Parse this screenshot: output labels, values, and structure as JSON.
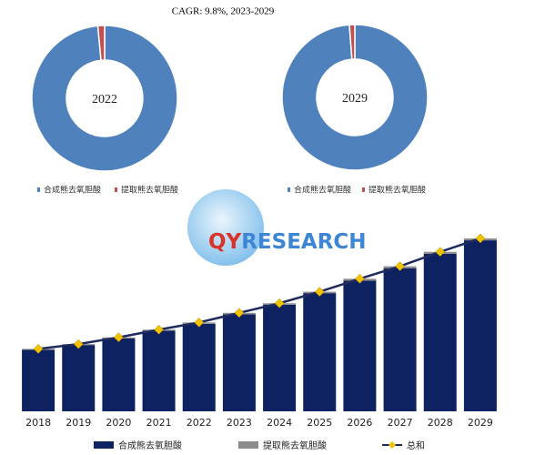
{
  "chart_data": [
    {
      "type": "pie",
      "title": "CAGR:    9.8%, 2023-2029",
      "label": "2022",
      "categories": [
        "合成熊去氧胆酸",
        "提取熊去氧胆酸"
      ],
      "values": [
        98.5,
        1.5
      ],
      "colors": [
        "#4f81bd",
        "#c0504d"
      ]
    },
    {
      "type": "pie",
      "label": "2029",
      "categories": [
        "合成熊去氧胆酸",
        "提取熊去氧胆酸"
      ],
      "values": [
        98.8,
        1.2
      ],
      "colors": [
        "#4f81bd",
        "#c0504d"
      ]
    },
    {
      "type": "bar",
      "stacked": true,
      "logo": {
        "left": "QY",
        "right": "RESEARCH"
      },
      "categories": [
        "2018",
        "2019",
        "2020",
        "2021",
        "2022",
        "2023",
        "2024",
        "2025",
        "2026",
        "2027",
        "2028",
        "2029"
      ],
      "series": [
        {
          "name": "合成熊去氧胆酸",
          "color": "#0e2160",
          "values": [
            64,
            69,
            76,
            84,
            91,
            101,
            111,
            123,
            136,
            149,
            164,
            178
          ]
        },
        {
          "name": "提取熊去氧胆酸",
          "color": "#8c8c8c",
          "values": [
            1,
            1,
            1,
            1,
            1.5,
            1.5,
            1.5,
            1.5,
            2,
            2,
            2,
            2
          ]
        },
        {
          "name": "总和",
          "type": "line",
          "color": "#1f2a5e",
          "marker_color": "#f2c100",
          "values": [
            65,
            70,
            77,
            85,
            92.5,
            102.5,
            112.5,
            124.5,
            138,
            151,
            166,
            180
          ]
        }
      ]
    }
  ]
}
